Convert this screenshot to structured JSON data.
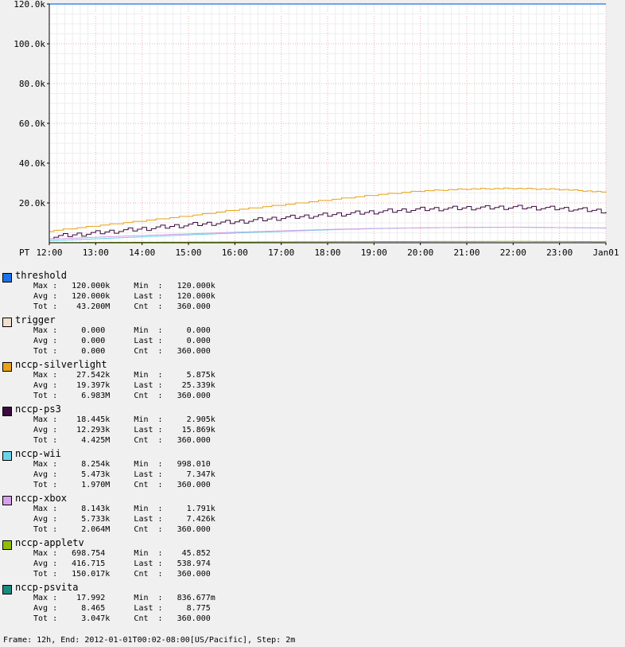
{
  "chart_data": {
    "type": "line",
    "timezone_label": "PT",
    "x_ticks": [
      "12:00",
      "13:00",
      "14:00",
      "15:00",
      "16:00",
      "17:00",
      "18:00",
      "19:00",
      "20:00",
      "21:00",
      "22:00",
      "23:00",
      "Jan01"
    ],
    "y_ticks": [
      "20.0k",
      "40.0k",
      "60.0k",
      "80.0k",
      "100.0k",
      "120.0k"
    ],
    "ylim": [
      0,
      120000
    ],
    "grid": true,
    "x_hours": [
      12,
      13,
      14,
      15,
      16,
      17,
      18,
      19,
      20,
      21,
      22,
      23,
      24
    ],
    "series": [
      {
        "name": "threshold",
        "color": "#1a73e8",
        "values": [
          120000,
          120000,
          120000,
          120000,
          120000,
          120000,
          120000,
          120000,
          120000,
          120000,
          120000,
          120000,
          120000
        ]
      },
      {
        "name": "trigger",
        "color": "#f0e0d0",
        "values": [
          0,
          0,
          0,
          0,
          0,
          0,
          0,
          0,
          0,
          0,
          0,
          0,
          0
        ]
      },
      {
        "name": "nccp-silverlight",
        "color": "#e8a317",
        "values": [
          5875,
          8500,
          11000,
          13500,
          16500,
          19000,
          21500,
          24000,
          26000,
          27000,
          27300,
          26800,
          25339
        ]
      },
      {
        "name": "nccp-ps3",
        "color": "#3b0a3e",
        "values": [
          2905,
          5000,
          7000,
          9000,
          10500,
          12500,
          14000,
          15500,
          16800,
          17500,
          17800,
          17200,
          15869
        ]
      },
      {
        "name": "nccp-wii",
        "color": "#6ad4e8",
        "values": [
          998,
          2000,
          3000,
          4000,
          4900,
          5700,
          6500,
          7100,
          7500,
          7700,
          7800,
          7600,
          7347
        ]
      },
      {
        "name": "nccp-xbox",
        "color": "#d8a0e8",
        "values": [
          1791,
          2800,
          3700,
          4500,
          5300,
          6000,
          6700,
          7200,
          7500,
          7700,
          7800,
          7600,
          7426
        ]
      },
      {
        "name": "nccp-appletv",
        "color": "#8fbf00",
        "values": [
          46,
          150,
          250,
          330,
          400,
          460,
          520,
          580,
          620,
          660,
          690,
          650,
          539
        ]
      },
      {
        "name": "nccp-psvita",
        "color": "#1a8a80",
        "values": [
          1,
          4,
          6,
          8,
          9,
          10,
          11,
          12,
          13,
          14,
          14,
          12,
          8.775
        ]
      }
    ]
  },
  "legend": [
    {
      "name": "threshold",
      "color": "#1a73e8",
      "l1": "Max :   120.000k     Min  :   120.000k",
      "l2": "Avg :   120.000k     Last :   120.000k",
      "l3": "Tot :    43.200M     Cnt  :   360.000"
    },
    {
      "name": "trigger",
      "color": "#f0e0d0",
      "l1": "Max :     0.000      Min  :     0.000",
      "l2": "Avg :     0.000      Last :     0.000",
      "l3": "Tot :     0.000      Cnt  :   360.000"
    },
    {
      "name": "nccp-silverlight",
      "color": "#e8a317",
      "l1": "Max :    27.542k     Min  :     5.875k",
      "l2": "Avg :    19.397k     Last :    25.339k",
      "l3": "Tot :     6.983M     Cnt  :   360.000"
    },
    {
      "name": "nccp-ps3",
      "color": "#3b0a3e",
      "l1": "Max :    18.445k     Min  :     2.905k",
      "l2": "Avg :    12.293k     Last :    15.869k",
      "l3": "Tot :     4.425M     Cnt  :   360.000"
    },
    {
      "name": "nccp-wii",
      "color": "#6ad4e8",
      "l1": "Max :     8.254k     Min  :   998.010",
      "l2": "Avg :     5.473k     Last :     7.347k",
      "l3": "Tot :     1.970M     Cnt  :   360.000"
    },
    {
      "name": "nccp-xbox",
      "color": "#d8a0e8",
      "l1": "Max :     8.143k     Min  :     1.791k",
      "l2": "Avg :     5.733k     Last :     7.426k",
      "l3": "Tot :     2.064M     Cnt  :   360.000"
    },
    {
      "name": "nccp-appletv",
      "color": "#8fbf00",
      "l1": "Max :   698.754      Min  :    45.852",
      "l2": "Avg :   416.715      Last :   538.974",
      "l3": "Tot :   150.017k     Cnt  :   360.000"
    },
    {
      "name": "nccp-psvita",
      "color": "#1a8a80",
      "l1": "Max :    17.992      Min  :   836.677m",
      "l2": "Avg :     8.465      Last :     8.775",
      "l3": "Tot :     3.047k     Cnt  :   360.000"
    }
  ],
  "footer": "Frame: 12h, End: 2012-01-01T00:02-08:00[US/Pacific], Step: 2m"
}
